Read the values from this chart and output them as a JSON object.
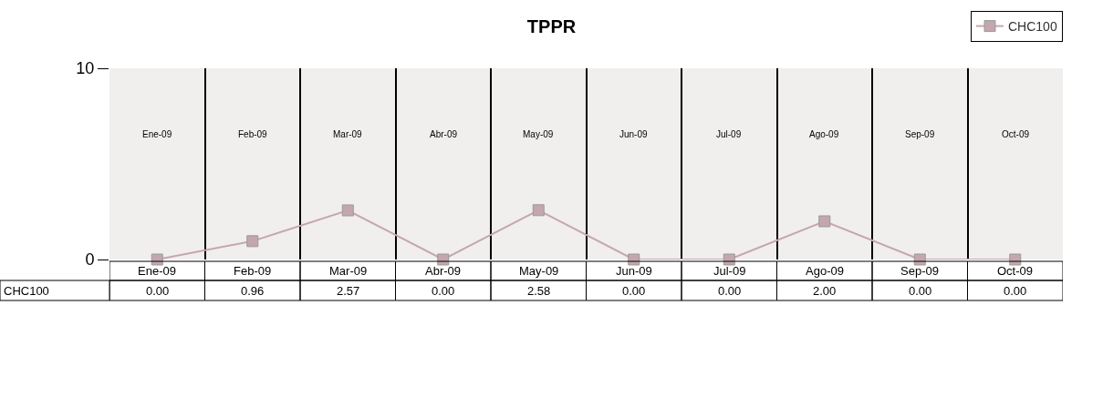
{
  "chart_data": {
    "type": "line",
    "title": "TPPR",
    "categories": [
      "Ene-09",
      "Feb-09",
      "Mar-09",
      "Abr-09",
      "May-09",
      "Jun-09",
      "Jul-09",
      "Ago-09",
      "Sep-09",
      "Oct-09"
    ],
    "series": [
      {
        "name": "CHC100",
        "color": "#c4a7ae",
        "values": [
          0,
          0.96,
          2.57,
          0,
          2.58,
          0,
          0,
          2.0,
          0,
          0
        ],
        "value_labels": [
          "0.00",
          "0.96",
          "2.57",
          "0.00",
          "2.58",
          "0.00",
          "0.00",
          "2.00",
          "0.00",
          "0.00"
        ]
      }
    ],
    "ylim": [
      0,
      10
    ],
    "yticks": [
      0,
      10
    ],
    "grid": "x",
    "legend": "top right",
    "marker": "square",
    "line_style": "solid"
  }
}
